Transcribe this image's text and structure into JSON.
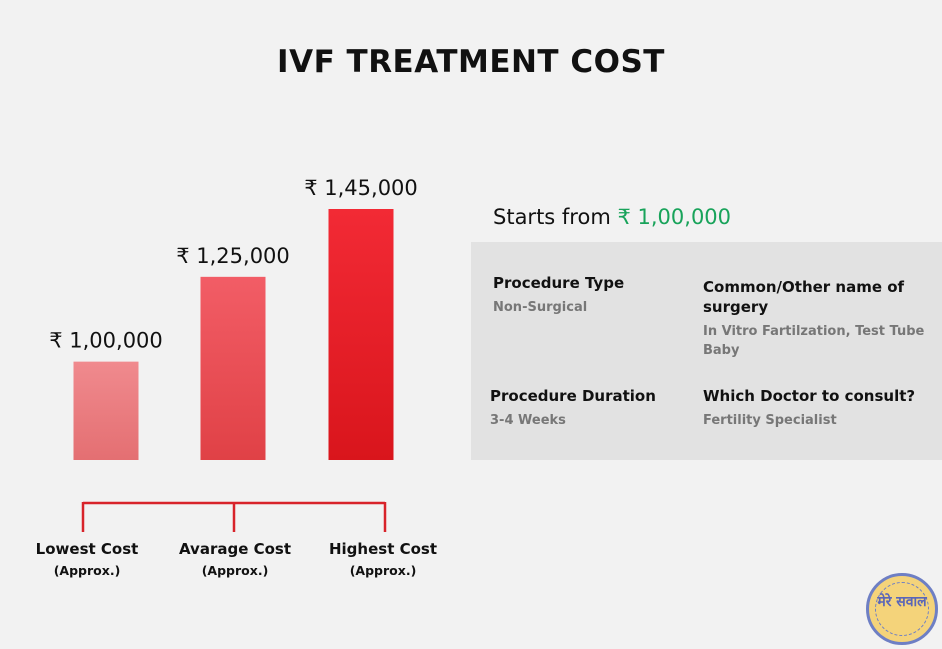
{
  "title": "IVF TREATMENT COST",
  "chart_data": {
    "type": "bar",
    "categories": [
      "Lowest Cost",
      "Avarage Cost",
      "Highest Cost"
    ],
    "category_sublabels": [
      "(Approx.)",
      "(Approx.)",
      "(Approx.)"
    ],
    "values": [
      100000,
      125000,
      145000
    ],
    "value_labels": [
      "₹ 1,00,000",
      "₹ 1,25,000",
      "₹ 1,45,000"
    ],
    "ylim": [
      71000,
      145000
    ],
    "colors": [
      [
        "#f08a8e",
        "#e46f72"
      ],
      [
        "#f25d66",
        "#e04146"
      ],
      [
        "#f22a35",
        "#d9151c"
      ]
    ],
    "bracket_color": "#d8232a",
    "grid": false
  },
  "starts": {
    "prefix": "Starts from ",
    "amount": "₹ 1,00,000",
    "amount_color": "#18a35a"
  },
  "info": {
    "procedure_type": {
      "label": "Procedure Type",
      "value": "Non-Surgical"
    },
    "other_name": {
      "label": "Common/Other name of surgery",
      "value": "In Vitro Fartilzation, Test Tube Baby"
    },
    "duration": {
      "label": "Procedure Duration",
      "value": "3-4 Weeks"
    },
    "doctor": {
      "label": "Which Doctor to consult?",
      "value": "Fertility Specialist"
    }
  },
  "logo": {
    "icon": "mere-sawal-logo",
    "text": "मेरे सवाल"
  }
}
